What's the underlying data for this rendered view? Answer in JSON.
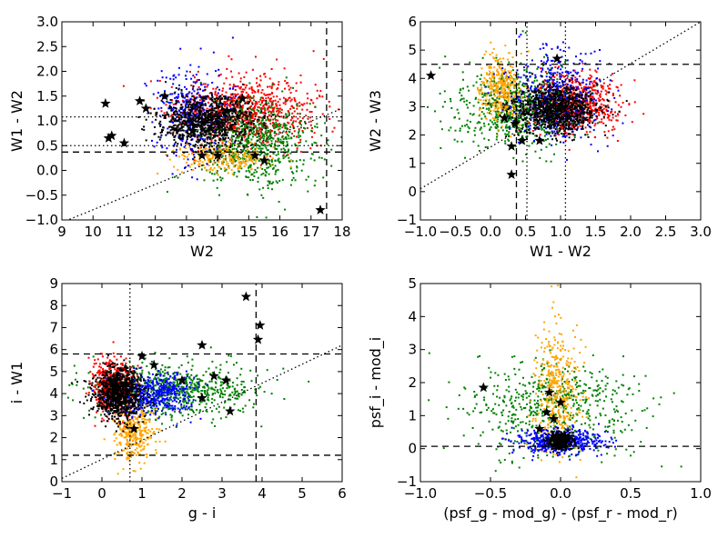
{
  "chart_data": [
    {
      "type": "scatter",
      "xlabel": "W2",
      "ylabel": "W1 - W2",
      "xlim": [
        9,
        18
      ],
      "ylim": [
        -1.0,
        3.0
      ],
      "xticks": [
        9,
        10,
        11,
        12,
        13,
        14,
        15,
        16,
        17,
        18
      ],
      "xtick_labels": [
        "9",
        "10",
        "11",
        "12",
        "13",
        "14",
        "15",
        "16",
        "17",
        "18"
      ],
      "yticks": [
        -1.0,
        -0.5,
        0.0,
        0.5,
        1.0,
        1.5,
        2.0,
        2.5,
        3.0
      ],
      "ytick_labels": [
        "−1.0",
        "−0.5",
        "0.0",
        "0.5",
        "1.0",
        "1.5",
        "2.0",
        "2.5",
        "3.0"
      ],
      "grid": false,
      "series": [
        {
          "name": "red",
          "color": "#ff0000",
          "cx": 14.8,
          "cy": 1.2,
          "sx": 1.1,
          "sy": 0.35,
          "n": 900
        },
        {
          "name": "green",
          "color": "#008000",
          "cx": 15.3,
          "cy": 0.55,
          "sx": 0.9,
          "sy": 0.45,
          "n": 700
        },
        {
          "name": "orange",
          "color": "#ffa500",
          "cx": 14.2,
          "cy": 0.25,
          "sx": 0.8,
          "sy": 0.15,
          "n": 250
        },
        {
          "name": "blue",
          "color": "#0000ff",
          "cx": 13.2,
          "cy": 1.15,
          "sx": 0.6,
          "sy": 0.45,
          "n": 350
        },
        {
          "name": "black",
          "color": "#000000",
          "cx": 13.6,
          "cy": 1.0,
          "sx": 0.75,
          "sy": 0.25,
          "n": 900
        }
      ],
      "stars": [
        [
          10.4,
          1.35
        ],
        [
          10.5,
          0.65
        ],
        [
          10.6,
          0.7
        ],
        [
          11.0,
          0.55
        ],
        [
          11.5,
          1.4
        ],
        [
          11.7,
          1.25
        ],
        [
          12.3,
          1.5
        ],
        [
          13.2,
          0.8
        ],
        [
          13.5,
          0.3
        ],
        [
          14.0,
          0.3
        ],
        [
          14.3,
          1.2
        ],
        [
          14.8,
          1.45
        ],
        [
          15.2,
          0.3
        ],
        [
          15.5,
          0.2
        ],
        [
          17.3,
          -0.8
        ]
      ],
      "lines": [
        {
          "style": "dashed",
          "points": [
            [
              9,
              0.37
            ],
            [
              18,
              0.37
            ]
          ]
        },
        {
          "style": "dashed",
          "points": [
            [
              17.5,
              -1.0
            ],
            [
              17.5,
              3.0
            ]
          ]
        },
        {
          "style": "dotted",
          "points": [
            [
              9,
              1.08
            ],
            [
              18,
              1.08
            ]
          ]
        },
        {
          "style": "dotted",
          "points": [
            [
              9,
              0.5
            ],
            [
              18,
              0.5
            ]
          ]
        },
        {
          "style": "dotted",
          "points": [
            [
              9,
              -1.05
            ],
            [
              18,
              1.25
            ]
          ]
        }
      ]
    },
    {
      "type": "scatter",
      "xlabel": "W1 - W2",
      "ylabel": "W2 - W3",
      "xlim": [
        -1.0,
        3.0
      ],
      "ylim": [
        -1,
        6
      ],
      "xticks": [
        -1.0,
        -0.5,
        0.0,
        0.5,
        1.0,
        1.5,
        2.0,
        2.5,
        3.0
      ],
      "xtick_labels": [
        "−1.0",
        "−0.5",
        "0.0",
        "0.5",
        "1.0",
        "1.5",
        "2.0",
        "2.5",
        "3.0"
      ],
      "yticks": [
        -1,
        0,
        1,
        2,
        3,
        4,
        5,
        6
      ],
      "ytick_labels": [
        "−1",
        "0",
        "1",
        "2",
        "3",
        "4",
        "5",
        "6"
      ],
      "grid": false,
      "series": [
        {
          "name": "red",
          "color": "#ff0000",
          "cx": 1.2,
          "cy": 3.1,
          "sx": 0.3,
          "sy": 0.5,
          "n": 700
        },
        {
          "name": "green",
          "color": "#008000",
          "cx": 0.4,
          "cy": 3.0,
          "sx": 0.45,
          "sy": 0.7,
          "n": 700
        },
        {
          "name": "orange",
          "color": "#ffa500",
          "cx": 0.15,
          "cy": 3.6,
          "sx": 0.15,
          "sy": 0.6,
          "n": 350
        },
        {
          "name": "blue",
          "color": "#0000ff",
          "cx": 0.95,
          "cy": 3.3,
          "sx": 0.35,
          "sy": 0.8,
          "n": 450
        },
        {
          "name": "black",
          "color": "#000000",
          "cx": 0.95,
          "cy": 2.9,
          "sx": 0.3,
          "sy": 0.4,
          "n": 900
        }
      ],
      "stars": [
        [
          -0.85,
          4.1
        ],
        [
          0.95,
          4.7
        ],
        [
          0.3,
          0.6
        ],
        [
          0.35,
          2.4
        ],
        [
          0.45,
          1.8
        ],
        [
          0.2,
          2.6
        ],
        [
          0.7,
          1.8
        ],
        [
          0.3,
          1.6
        ],
        [
          1.0,
          3.0
        ]
      ],
      "lines": [
        {
          "style": "dashed",
          "points": [
            [
              -1.0,
              4.5
            ],
            [
              3.0,
              4.5
            ]
          ]
        },
        {
          "style": "dashed",
          "points": [
            [
              0.37,
              -1
            ],
            [
              0.37,
              6
            ]
          ]
        },
        {
          "style": "dotted",
          "points": [
            [
              0.52,
              -1
            ],
            [
              0.52,
              6
            ]
          ]
        },
        {
          "style": "dotted",
          "points": [
            [
              1.07,
              -1
            ],
            [
              1.07,
              6
            ]
          ]
        },
        {
          "style": "dotted",
          "points": [
            [
              -1.0,
              0.1
            ],
            [
              3.0,
              6.0
            ]
          ]
        }
      ]
    },
    {
      "type": "scatter",
      "xlabel": "g - i",
      "ylabel": "i - W1",
      "xlim": [
        -1,
        6
      ],
      "ylim": [
        0,
        9
      ],
      "xticks": [
        -1,
        0,
        1,
        2,
        3,
        4,
        5,
        6
      ],
      "xtick_labels": [
        "−1",
        "0",
        "1",
        "2",
        "3",
        "4",
        "5",
        "6"
      ],
      "yticks": [
        0,
        1,
        2,
        3,
        4,
        5,
        6,
        7,
        8,
        9
      ],
      "ytick_labels": [
        "0",
        "1",
        "2",
        "3",
        "4",
        "5",
        "6",
        "7",
        "8",
        "9"
      ],
      "grid": false,
      "series": [
        {
          "name": "green",
          "color": "#008000",
          "cx": 1.8,
          "cy": 4.2,
          "sx": 1.0,
          "sy": 0.6,
          "n": 700
        },
        {
          "name": "red",
          "color": "#ff0000",
          "cx": 0.3,
          "cy": 4.3,
          "sx": 0.25,
          "sy": 0.6,
          "n": 600
        },
        {
          "name": "orange",
          "color": "#ffa500",
          "cx": 0.8,
          "cy": 2.3,
          "sx": 0.25,
          "sy": 0.7,
          "n": 350
        },
        {
          "name": "blue",
          "color": "#0000ff",
          "cx": 1.3,
          "cy": 4.0,
          "sx": 0.5,
          "sy": 0.5,
          "n": 450
        },
        {
          "name": "black",
          "color": "#000000",
          "cx": 0.4,
          "cy": 4.0,
          "sx": 0.3,
          "sy": 0.55,
          "n": 900
        }
      ],
      "stars": [
        [
          3.6,
          8.4
        ],
        [
          3.95,
          7.1
        ],
        [
          3.9,
          6.45
        ],
        [
          2.5,
          6.2
        ],
        [
          1.3,
          5.3
        ],
        [
          2.0,
          4.6
        ],
        [
          2.8,
          4.8
        ],
        [
          3.1,
          4.6
        ],
        [
          3.2,
          3.2
        ],
        [
          2.5,
          3.8
        ],
        [
          0.8,
          2.4
        ],
        [
          1.0,
          5.7
        ]
      ],
      "lines": [
        {
          "style": "dashed",
          "points": [
            [
              -1,
              5.8
            ],
            [
              6,
              5.8
            ]
          ]
        },
        {
          "style": "dashed",
          "points": [
            [
              -1,
              1.2
            ],
            [
              6,
              1.2
            ]
          ]
        },
        {
          "style": "dashed",
          "points": [
            [
              3.85,
              0
            ],
            [
              3.85,
              9
            ]
          ]
        },
        {
          "style": "dotted",
          "points": [
            [
              0.7,
              0
            ],
            [
              0.7,
              9
            ]
          ]
        },
        {
          "style": "dotted",
          "points": [
            [
              -1,
              0.15
            ],
            [
              6,
              6.2
            ]
          ]
        }
      ]
    },
    {
      "type": "scatter",
      "xlabel": "(psf_g - mod_g) - (psf_r - mod_r)",
      "ylabel": "psf_i - mod_i",
      "xlim": [
        -1.0,
        1.0
      ],
      "ylim": [
        -1,
        5
      ],
      "xticks": [
        -1.0,
        -0.5,
        0.0,
        0.5,
        1.0
      ],
      "xtick_labels": [
        "−1.0",
        "−0.5",
        "0.0",
        "0.5",
        "1.0"
      ],
      "yticks": [
        -1,
        0,
        1,
        2,
        3,
        4,
        5
      ],
      "ytick_labels": [
        "−1",
        "0",
        "1",
        "2",
        "3",
        "4",
        "5"
      ],
      "grid": false,
      "series": [
        {
          "name": "green",
          "color": "#008000",
          "cx": -0.05,
          "cy": 1.2,
          "sx": 0.3,
          "sy": 0.7,
          "n": 600
        },
        {
          "name": "orange",
          "color": "#ffa500",
          "cx": -0.02,
          "cy": 1.8,
          "sx": 0.08,
          "sy": 0.9,
          "n": 400
        },
        {
          "name": "blue",
          "color": "#0000ff",
          "cx": 0.0,
          "cy": 0.2,
          "sx": 0.15,
          "sy": 0.18,
          "n": 450
        },
        {
          "name": "black",
          "color": "#000000",
          "cx": 0.0,
          "cy": 0.25,
          "sx": 0.04,
          "sy": 0.12,
          "n": 500
        }
      ],
      "stars": [
        [
          -0.55,
          1.85
        ],
        [
          -0.1,
          1.1
        ],
        [
          -0.05,
          0.9
        ],
        [
          -0.15,
          0.6
        ],
        [
          0.0,
          1.4
        ],
        [
          -0.08,
          1.7
        ]
      ],
      "lines": [
        {
          "style": "dashed",
          "points": [
            [
              -1.0,
              0.07
            ],
            [
              1.0,
              0.07
            ]
          ]
        }
      ]
    }
  ]
}
